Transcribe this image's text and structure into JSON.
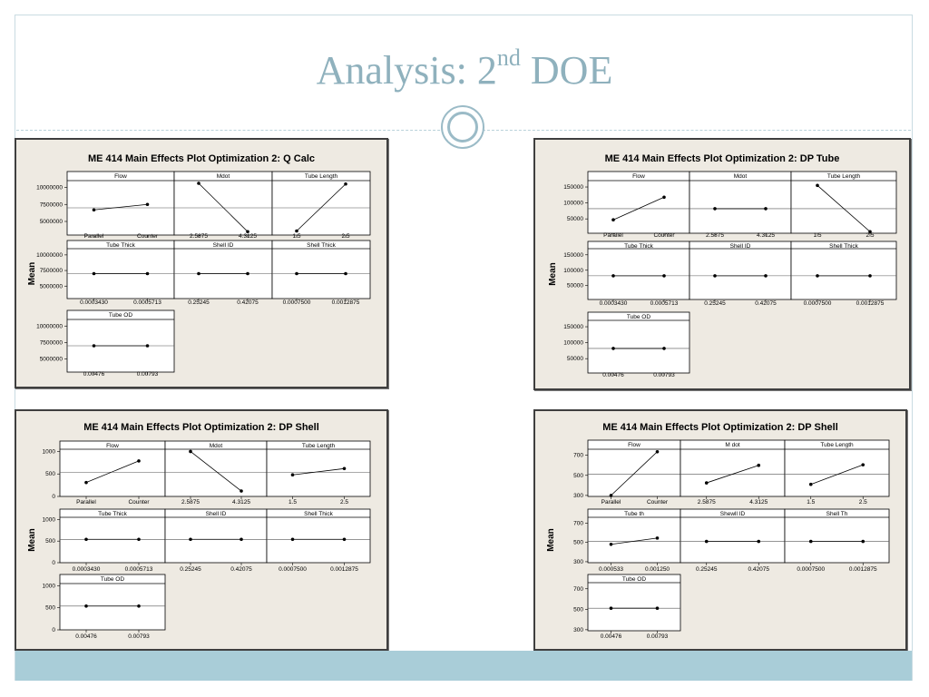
{
  "slide": {
    "title_main": "Analysis: 2",
    "title_sup": "nd",
    "title_end": " DOE"
  },
  "colors": {
    "title": "#8fb1bd",
    "accent_band": "#a9cdd8",
    "panel_bg": "#eeeae2",
    "plot_bg": "#ffffff"
  },
  "chart_data": [
    {
      "type": "line",
      "title": "ME 414 Main Effects Plot Optimization 2: Q Calc",
      "ylabel": "Mean",
      "yticks": [
        {
          "v": 5000000,
          "label": "5000000"
        },
        {
          "v": 7500000,
          "label": "7500000"
        },
        {
          "v": 10000000,
          "label": "10000000"
        }
      ],
      "ylim": [
        3000000,
        11000000
      ],
      "reference": 7000000,
      "factors": [
        {
          "name": "Flow",
          "levels": [
            "Parallel",
            "Counter"
          ],
          "means": [
            6700000,
            7500000
          ]
        },
        {
          "name": "Mdot",
          "levels": [
            "2.5875",
            "4.3125"
          ],
          "means": [
            10600000,
            3500000
          ]
        },
        {
          "name": "Tube Length",
          "levels": [
            "1.5",
            "2.5"
          ],
          "means": [
            3600000,
            10500000
          ]
        },
        {
          "name": "Tube Thick",
          "levels": [
            "0.0003430",
            "0.0005713"
          ],
          "means": [
            7000000,
            7000000
          ]
        },
        {
          "name": "Shell ID",
          "levels": [
            "0.25245",
            "0.42075"
          ],
          "means": [
            7000000,
            7000000
          ]
        },
        {
          "name": "Shell Thick",
          "levels": [
            "0.0007500",
            "0.0012875"
          ],
          "means": [
            7000000,
            7000000
          ]
        },
        {
          "name": "Tube OD",
          "levels": [
            "0.00476",
            "0.00793"
          ],
          "means": [
            7000000,
            7000000
          ]
        }
      ]
    },
    {
      "type": "line",
      "title": "ME 414 Main Effects Plot Optimization 2: DP Tube",
      "ylabel": "Mean",
      "yticks": [
        {
          "v": 50000,
          "label": "50000"
        },
        {
          "v": 100000,
          "label": "100000"
        },
        {
          "v": 150000,
          "label": "150000"
        }
      ],
      "ylim": [
        5000,
        170000
      ],
      "reference": 82000,
      "factors": [
        {
          "name": "Flow",
          "levels": [
            "Parallel",
            "Counter"
          ],
          "means": [
            47000,
            118000
          ]
        },
        {
          "name": "Mdot",
          "levels": [
            "2.5875",
            "4.3125"
          ],
          "means": [
            82000,
            82000
          ]
        },
        {
          "name": "Tube Length",
          "levels": [
            "1.5",
            "2.5"
          ],
          "means": [
            155000,
            10000
          ]
        },
        {
          "name": "Tube Thick",
          "levels": [
            "0.0003430",
            "0.0005713"
          ],
          "means": [
            82000,
            82000
          ]
        },
        {
          "name": "Shell ID",
          "levels": [
            "0.25245",
            "0.42075"
          ],
          "means": [
            82000,
            82000
          ]
        },
        {
          "name": "Shell Thick",
          "levels": [
            "0.0007500",
            "0.0012875"
          ],
          "means": [
            82000,
            82000
          ]
        },
        {
          "name": "Tube OD",
          "levels": [
            "0.00476",
            "0.00793"
          ],
          "means": [
            82000,
            82000
          ]
        }
      ]
    },
    {
      "type": "line",
      "title": "ME 414 Main Effects Plot Optimization 2: DP Shell",
      "ylabel": "Mean",
      "yticks": [
        {
          "v": 0,
          "label": "0"
        },
        {
          "v": 500,
          "label": "500"
        },
        {
          "v": 1000,
          "label": "1000"
        }
      ],
      "ylim": [
        0,
        1050
      ],
      "reference": 540,
      "factors": [
        {
          "name": "Flow",
          "levels": [
            "Parallel",
            "Counter"
          ],
          "means": [
            310,
            790
          ]
        },
        {
          "name": "Mdot",
          "levels": [
            "2.5875",
            "4.3125"
          ],
          "means": [
            1000,
            120
          ]
        },
        {
          "name": "Tube Length",
          "levels": [
            "1.5",
            "2.5"
          ],
          "means": [
            480,
            620
          ]
        },
        {
          "name": "Tube Thick",
          "levels": [
            "0.0003430",
            "0.0005713"
          ],
          "means": [
            540,
            540
          ]
        },
        {
          "name": "Shell ID",
          "levels": [
            "0.25245",
            "0.42075"
          ],
          "means": [
            540,
            540
          ]
        },
        {
          "name": "Shell Thick",
          "levels": [
            "0.0007500",
            "0.0012875"
          ],
          "means": [
            540,
            540
          ]
        },
        {
          "name": "Tube OD",
          "levels": [
            "0.00476",
            "0.00793"
          ],
          "means": [
            540,
            540
          ]
        }
      ]
    },
    {
      "type": "line",
      "title": "ME 414 Main Effects Plot Optimization 2: DP Shell",
      "ylabel": "Mean",
      "yticks": [
        {
          "v": 300,
          "label": "300"
        },
        {
          "v": 500,
          "label": "500"
        },
        {
          "v": 700,
          "label": "700"
        }
      ],
      "ylim": [
        290,
        760
      ],
      "reference": 510,
      "factors": [
        {
          "name": "Flow",
          "levels": [
            "Parallel",
            "Counter"
          ],
          "means": [
            300,
            735
          ]
        },
        {
          "name": "M dot",
          "levels": [
            "2.5875",
            "4.3125"
          ],
          "means": [
            425,
            600
          ]
        },
        {
          "name": "Tube Length",
          "levels": [
            "1.5",
            "2.5"
          ],
          "means": [
            410,
            605
          ]
        },
        {
          "name": "Tube th",
          "levels": [
            "0.000533",
            "0.001250"
          ],
          "means": [
            480,
            545
          ]
        },
        {
          "name": "Shewll ID",
          "levels": [
            "0.25245",
            "0.42075"
          ],
          "means": [
            510,
            510
          ]
        },
        {
          "name": "Shell Th",
          "levels": [
            "0.0007500",
            "0.0012875"
          ],
          "means": [
            510,
            510
          ]
        },
        {
          "name": "Tube OD",
          "levels": [
            "0.00476",
            "0.00793"
          ],
          "means": [
            510,
            510
          ]
        }
      ]
    }
  ]
}
